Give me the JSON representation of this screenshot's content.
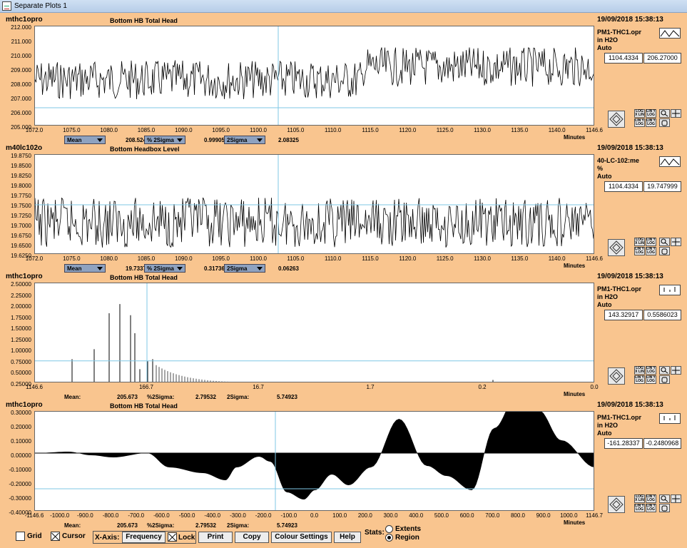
{
  "window": {
    "title": "Separate Plots 1"
  },
  "colors": {
    "background": "#f9c58f",
    "cursor": "#7fc7e6",
    "trace": "#000000"
  },
  "panels": [
    {
      "name": "mthc1opro",
      "title": "Bottom HB Total Head",
      "date": "19/09/2018 15:38:13",
      "tag": "PM1-THC1.opr",
      "units": "in H2O",
      "mode": "Auto",
      "cursor_x": "1104.4334",
      "cursor_y": "206.27000",
      "y_labels": [
        "212.000",
        "211.000",
        "210.000",
        "209.000",
        "208.000",
        "207.000",
        "206.000",
        "205.000"
      ],
      "x_labels": [
        "1072.0",
        "1075.0",
        "1080.0",
        "1085.0",
        "1090.0",
        "1095.0",
        "1100.0",
        "1105.0",
        "1110.0",
        "1115.0",
        "1120.0",
        "1125.0",
        "1130.0",
        "1135.0",
        "1140.0",
        "1146.6"
      ],
      "x_unit": "Minutes",
      "stat1_select": "Mean",
      "stat1_value": "208.524",
      "stat2_select": "% 2Sigma",
      "stat2_value": "0.99905",
      "stat3_select": "2Sigma",
      "stat3_value": "2.08325"
    },
    {
      "name": "m40lc102o",
      "title": "Bottom Headbox Level",
      "date": "19/09/2018 15:38:13",
      "tag": "40-LC-102:me",
      "units": "%",
      "mode": "Auto",
      "cursor_x": "1104.4334",
      "cursor_y": "19.747999",
      "y_labels": [
        "19.8750",
        "19.8500",
        "19.8250",
        "19.8000",
        "19.7750",
        "19.7500",
        "19.7250",
        "19.7000",
        "19.6750",
        "19.6500",
        "19.6250"
      ],
      "x_labels": [
        "1072.0",
        "1075.0",
        "1080.0",
        "1085.0",
        "1090.0",
        "1095.0",
        "1100.0",
        "1105.0",
        "1110.0",
        "1115.0",
        "1120.0",
        "1125.0",
        "1130.0",
        "1135.0",
        "1140.0",
        "1146.6"
      ],
      "x_unit": "Minutes",
      "stat1_select": "Mean",
      "stat1_value": "19.7337",
      "stat2_select": "% 2Sigma",
      "stat2_value": "0.31736",
      "stat3_select": "2Sigma",
      "stat3_value": "0.06263"
    },
    {
      "name": "mthc1opro",
      "title": "Bottom HB Total Head",
      "date": "19/09/2018 15:38:13",
      "tag": "PM1-THC1.opr",
      "units": "in H2O",
      "mode": "Auto",
      "cursor_x": "143.32917",
      "cursor_y": "0.5586023",
      "y_labels": [
        "2.50000",
        "2.25000",
        "2.00000",
        "1.75000",
        "1.50000",
        "1.25000",
        "1.00000",
        "0.75000",
        "0.50000",
        "0.25000"
      ],
      "x_labels": [
        "1146.6",
        "166.7",
        "16.7",
        "1.7",
        "0.2",
        "0.0"
      ],
      "x_unit": "Minutes",
      "stat1_label": "Mean:",
      "stat1_value": "205.673",
      "stat2_label": "%2Sigma:",
      "stat2_value": "2.79532",
      "stat3_label": "2Sigma:",
      "stat3_value": "5.74923"
    },
    {
      "name": "mthc1opro",
      "title": "Bottom HB Total Head",
      "date": "19/09/2018 15:38:13",
      "tag": "PM1-THC1.opr",
      "units": "in H2O",
      "mode": "Auto",
      "cursor_x": "-161.28337",
      "cursor_y": "-0.2480968",
      "y_labels": [
        "0.30000",
        "0.20000",
        "0.10000",
        "0.00000",
        "-0.10000",
        "-0.20000",
        "-0.30000",
        "-0.40000"
      ],
      "x_labels": [
        "-1146.6",
        "-1000.0",
        "-900.0",
        "-800.0",
        "-700.0",
        "-600.0",
        "-500.0",
        "-400.0",
        "-300.0",
        "-200.0",
        "-100.0",
        "0.0",
        "100.0",
        "200.0",
        "300.0",
        "400.0",
        "500.0",
        "600.0",
        "700.0",
        "800.0",
        "900.0",
        "1000.0",
        "1146.7"
      ],
      "x_unit": "Minutes",
      "stat1_label": "Mean:",
      "stat1_value": "205.673",
      "stat2_label": "%2Sigma:",
      "stat2_value": "2.79532",
      "stat3_label": "2Sigma:",
      "stat3_value": "5.74923"
    }
  ],
  "tools": {
    "log_x": "LOG X LIN",
    "lin_y": "LIN Y LOG",
    "lin_y2": "LIN Y LOG"
  },
  "bottom": {
    "grid_label": "Grid",
    "cursor_label": "Cursor",
    "xaxis_label": "X-Axis:",
    "frequency_button": "Frequency",
    "lock_label": "Lock",
    "print_button": "Print",
    "copy_button": "Copy",
    "colour_button": "Colour Settings",
    "help_button": "Help",
    "stats_label": "Stats:",
    "extents_label": "Extents",
    "region_label": "Region"
  }
}
